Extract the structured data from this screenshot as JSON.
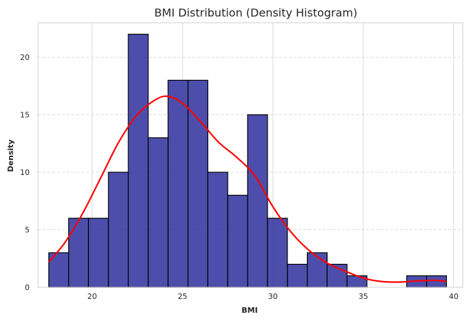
{
  "chart_data": {
    "type": "bar",
    "title": "BMI Distribution (Density Histogram)",
    "xlabel": "BMI",
    "ylabel": "Density",
    "xlim": [
      17,
      40.5
    ],
    "ylim": [
      0,
      23
    ],
    "xticks": [
      20,
      25,
      30,
      35,
      40
    ],
    "yticks": [
      0,
      5,
      10,
      15,
      20
    ],
    "grid": true,
    "bins": [
      {
        "x0": 17.6,
        "x1": 18.7,
        "value": 3
      },
      {
        "x0": 18.7,
        "x1": 19.8,
        "value": 6
      },
      {
        "x0": 19.8,
        "x1": 20.9,
        "value": 6
      },
      {
        "x0": 20.9,
        "x1": 22.0,
        "value": 10
      },
      {
        "x0": 22.0,
        "x1": 23.1,
        "value": 22
      },
      {
        "x0": 23.1,
        "x1": 24.2,
        "value": 13
      },
      {
        "x0": 24.2,
        "x1": 25.3,
        "value": 18
      },
      {
        "x0": 25.3,
        "x1": 26.4,
        "value": 18
      },
      {
        "x0": 26.4,
        "x1": 27.5,
        "value": 10
      },
      {
        "x0": 27.5,
        "x1": 28.6,
        "value": 8
      },
      {
        "x0": 28.6,
        "x1": 29.7,
        "value": 15
      },
      {
        "x0": 29.7,
        "x1": 30.8,
        "value": 6
      },
      {
        "x0": 30.8,
        "x1": 31.9,
        "value": 2
      },
      {
        "x0": 31.9,
        "x1": 33.0,
        "value": 3
      },
      {
        "x0": 33.0,
        "x1": 34.1,
        "value": 2
      },
      {
        "x0": 34.1,
        "x1": 35.2,
        "value": 1
      },
      {
        "x0": 35.2,
        "x1": 36.3,
        "value": 0
      },
      {
        "x0": 36.3,
        "x1": 37.4,
        "value": 0
      },
      {
        "x0": 37.4,
        "x1": 38.5,
        "value": 1
      },
      {
        "x0": 38.5,
        "x1": 39.6,
        "value": 1
      }
    ],
    "kde": {
      "x": [
        17.6,
        18.5,
        19.5,
        20.5,
        21.5,
        22.5,
        23.5,
        24.2,
        25.0,
        26.0,
        27.0,
        28.0,
        29.0,
        30.0,
        31.0,
        32.0,
        33.0,
        34.0,
        35.0,
        36.0,
        37.0,
        38.0,
        39.0,
        39.6
      ],
      "y": [
        2.2,
        3.9,
        6.5,
        9.6,
        12.7,
        15.0,
        16.3,
        16.6,
        16.0,
        14.4,
        12.6,
        11.3,
        9.7,
        7.0,
        4.8,
        3.2,
        2.1,
        1.4,
        0.8,
        0.5,
        0.45,
        0.55,
        0.6,
        0.5
      ]
    },
    "colors": {
      "bar_fill": "#2e2f9c",
      "bar_edge": "#000000",
      "kde_line": "#ff0000",
      "grid": "#d9d9d9"
    }
  }
}
